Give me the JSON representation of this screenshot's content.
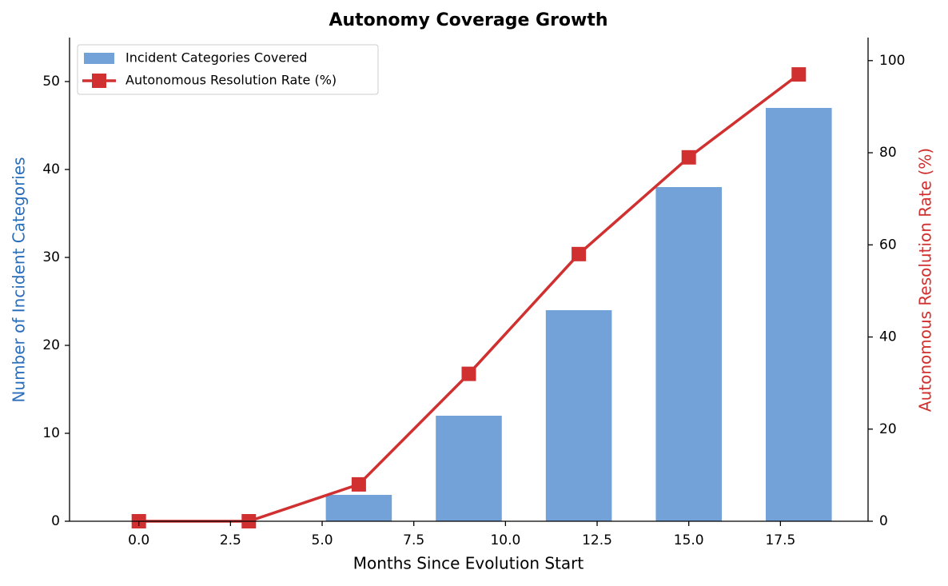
{
  "chart_data": {
    "type": "bar",
    "title": "Autonomy Coverage Growth",
    "xlabel": "Months Since Evolution Start",
    "ylabel": "Number of Incident Categories",
    "ylabel_color": "#2a6ebb",
    "y2label": "Autonomous Resolution Rate (%)",
    "y2label_color": "#d03030",
    "x": [
      0,
      3,
      6,
      9,
      12,
      15,
      18
    ],
    "series": [
      {
        "name": "Incident Categories Covered",
        "type": "bar",
        "color": "#73a2d9",
        "values": [
          0,
          0,
          3,
          12,
          24,
          38,
          47
        ]
      },
      {
        "name": "Autonomous Resolution Rate (%)",
        "type": "line",
        "axis": "y2",
        "color": "#d03030",
        "values": [
          0,
          0,
          8,
          32,
          58,
          79,
          97
        ]
      }
    ],
    "xlim": [
      -1.89,
      19.89
    ],
    "xticks": [
      {
        "value": 0,
        "label": "0.0"
      },
      2.5,
      {
        "value": 5,
        "label": "5.0"
      },
      7.5,
      {
        "value": 10,
        "label": "10.0"
      },
      12.5,
      {
        "value": 15,
        "label": "15.0"
      },
      17.5
    ],
    "ylim": [
      0,
      55
    ],
    "yticks": [
      0,
      10,
      20,
      30,
      40,
      50
    ],
    "y2lim": [
      0,
      105
    ],
    "y2ticks": [
      0,
      20,
      40,
      60,
      80,
      100
    ],
    "grid": false,
    "legend": "upper left"
  }
}
